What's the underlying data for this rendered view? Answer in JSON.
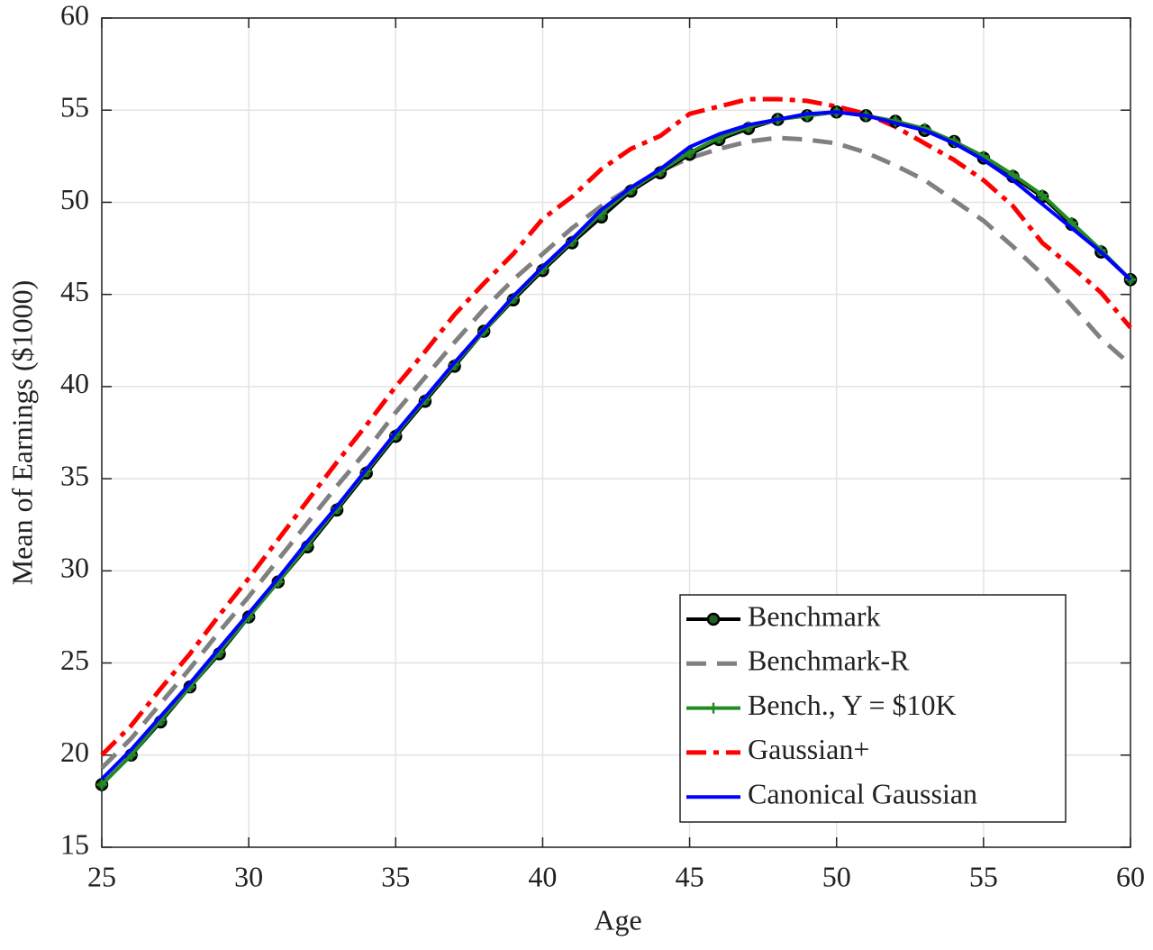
{
  "chart_data": {
    "type": "line",
    "xlabel": "Age",
    "ylabel": "Mean of Earnings ($1000)",
    "x": [
      25,
      26,
      27,
      28,
      29,
      30,
      31,
      32,
      33,
      34,
      35,
      36,
      37,
      38,
      39,
      40,
      41,
      42,
      43,
      44,
      45,
      46,
      47,
      48,
      49,
      50,
      51,
      52,
      53,
      54,
      55,
      56,
      57,
      58,
      59,
      60
    ],
    "xlim": [
      25,
      60
    ],
    "xticks": [
      25,
      30,
      35,
      40,
      45,
      50,
      55,
      60
    ],
    "ylim": [
      15,
      60
    ],
    "yticks": [
      15,
      20,
      25,
      30,
      35,
      40,
      45,
      50,
      55,
      60
    ],
    "grid": true,
    "legend": "lower right",
    "series": [
      {
        "name": "Benchmark",
        "color": "#000000",
        "linestyle": "solid",
        "marker": "o",
        "values": [
          18.4,
          20.0,
          21.8,
          23.7,
          25.5,
          27.5,
          29.4,
          31.3,
          33.3,
          35.3,
          37.3,
          39.2,
          41.1,
          43.0,
          44.7,
          46.3,
          47.8,
          49.2,
          50.6,
          51.6,
          52.6,
          53.4,
          54.0,
          54.5,
          54.7,
          54.9,
          54.7,
          54.4,
          53.9,
          53.3,
          52.4,
          51.4,
          50.3,
          48.8,
          47.3,
          45.8
        ]
      },
      {
        "name": "Benchmark-R",
        "color": "#808080",
        "linestyle": "dashed",
        "marker": "none",
        "values": [
          19.3,
          20.9,
          22.8,
          24.7,
          26.7,
          28.6,
          30.6,
          32.6,
          34.6,
          36.5,
          38.6,
          40.5,
          42.4,
          44.2,
          45.8,
          47.2,
          48.6,
          49.8,
          50.8,
          51.7,
          52.4,
          52.9,
          53.3,
          53.5,
          53.4,
          53.2,
          52.7,
          52.0,
          51.2,
          50.1,
          49.0,
          47.6,
          46.1,
          44.4,
          42.6,
          41.2
        ]
      },
      {
        "name": "Bench., Y = $10K",
        "color": "#228b22",
        "linestyle": "solid",
        "marker": "+",
        "values": [
          18.4,
          20.0,
          21.9,
          23.7,
          25.6,
          27.5,
          29.4,
          31.4,
          33.4,
          35.4,
          37.4,
          39.3,
          41.2,
          43.0,
          44.8,
          46.4,
          47.9,
          49.4,
          50.7,
          51.7,
          52.7,
          53.5,
          54.1,
          54.5,
          54.7,
          54.9,
          54.7,
          54.4,
          54.0,
          53.3,
          52.5,
          51.5,
          50.4,
          48.9,
          47.4,
          45.8
        ]
      },
      {
        "name": "Gaussian+",
        "color": "#ff0000",
        "linestyle": "dashdot",
        "marker": "none",
        "values": [
          20.0,
          21.6,
          23.6,
          25.5,
          27.6,
          29.6,
          31.7,
          33.8,
          35.9,
          37.9,
          40.0,
          41.9,
          43.9,
          45.6,
          47.2,
          49.1,
          50.3,
          51.8,
          52.9,
          53.6,
          54.8,
          55.2,
          55.6,
          55.6,
          55.5,
          55.2,
          54.8,
          54.1,
          53.2,
          52.3,
          51.2,
          49.8,
          47.8,
          46.5,
          45.1,
          43.2
        ]
      },
      {
        "name": "Canonical Gaussian",
        "color": "#0000ff",
        "linestyle": "solid",
        "marker": "none",
        "values": [
          18.7,
          20.3,
          22.1,
          23.9,
          25.8,
          27.7,
          29.6,
          31.6,
          33.5,
          35.5,
          37.5,
          39.4,
          41.3,
          43.1,
          44.9,
          46.5,
          48.0,
          49.6,
          50.8,
          51.8,
          53.0,
          53.7,
          54.2,
          54.5,
          54.8,
          54.9,
          54.7,
          54.3,
          53.9,
          53.2,
          52.3,
          51.2,
          49.9,
          48.6,
          47.3,
          45.8
        ]
      }
    ]
  }
}
